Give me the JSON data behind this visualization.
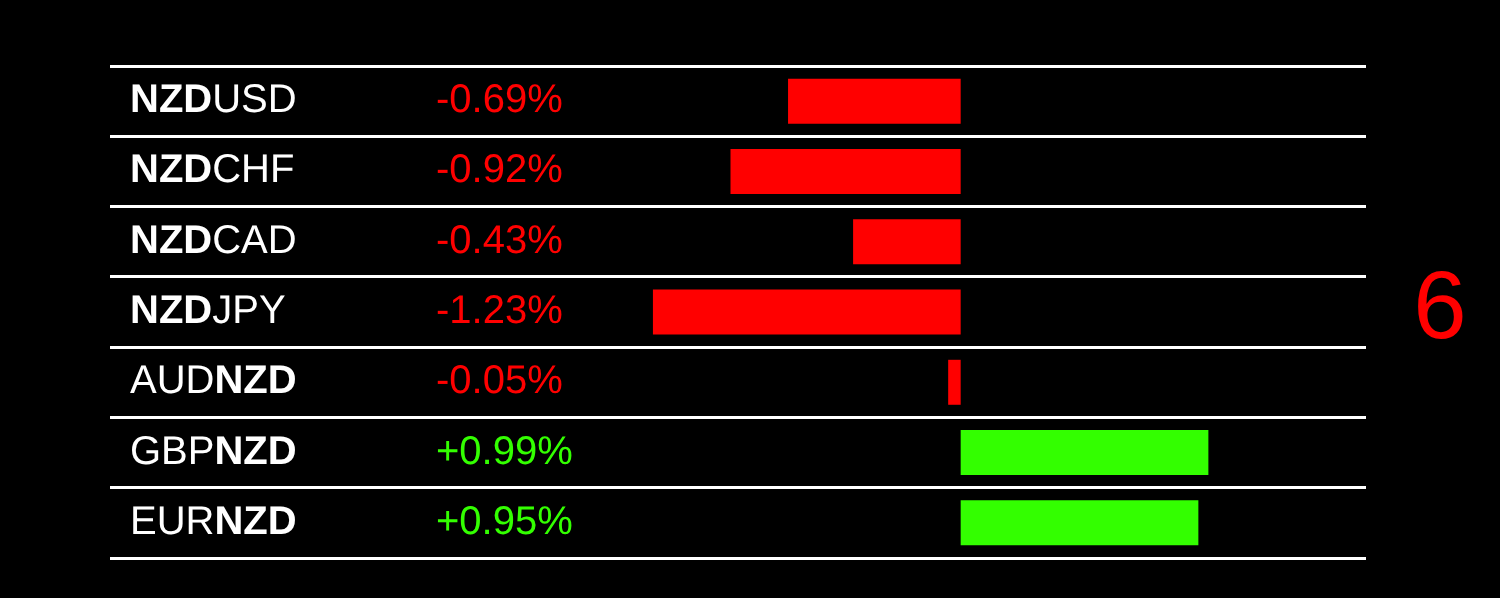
{
  "chart_data": {
    "type": "bar",
    "orientation": "horizontal",
    "categories": [
      "NZDUSD",
      "NZDCHF",
      "NZDCAD",
      "NZDJPY",
      "AUDNZD",
      "GBPNZD",
      "EURNZD"
    ],
    "values": [
      -0.69,
      -0.92,
      -0.43,
      -1.23,
      -0.05,
      0.99,
      0.95
    ],
    "colors": [
      "#ff0000",
      "#ff0000",
      "#ff0000",
      "#ff0000",
      "#ff0000",
      "#33ff00",
      "#33ff00"
    ],
    "value_labels": [
      "-0.69%",
      "-0.92%",
      "-0.43%",
      "-1.23%",
      "-0.05%",
      "+0.99%",
      "+0.95%"
    ],
    "xlim": [
      -3.4,
      1.62
    ],
    "grid": "y",
    "legend": false,
    "annotations": [
      "6"
    ]
  }
}
